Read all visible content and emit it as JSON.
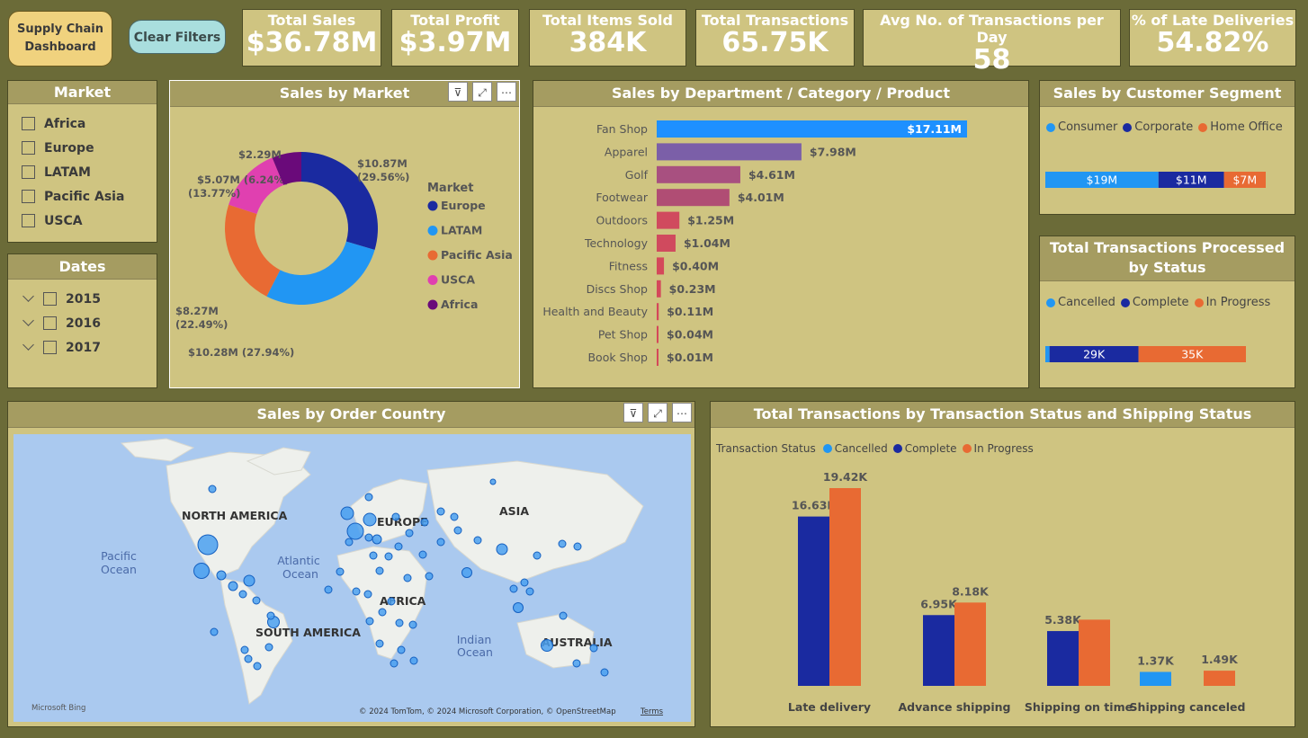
{
  "buttons": {
    "supply_chain": "Supply Chain Dashboard",
    "clear_filters": "Clear Filters"
  },
  "kpis": [
    {
      "label": "Total Sales",
      "value": "$36.78M"
    },
    {
      "label": "Total Profit",
      "value": "$3.97M"
    },
    {
      "label": "Total Items Sold",
      "value": "384K"
    },
    {
      "label": "Total Transactions",
      "value": "65.75K"
    },
    {
      "label": "Avg No. of Transactions per Day",
      "value": "58"
    },
    {
      "label": "% of Late Deliveries",
      "value": "54.82%"
    }
  ],
  "market_slicer": {
    "title": "Market",
    "items": [
      "Africa",
      "Europe",
      "LATAM",
      "Pacific Asia",
      "USCA"
    ]
  },
  "dates_slicer": {
    "title": "Dates",
    "items": [
      "2015",
      "2016",
      "2017"
    ]
  },
  "sales_by_market": {
    "title": "Sales by Market",
    "legend_title": "Market",
    "chart_data": {
      "type": "pie",
      "labels": [
        "Europe",
        "LATAM",
        "Pacific Asia",
        "USCA",
        "Africa"
      ],
      "values": [
        10.87,
        10.28,
        8.27,
        5.07,
        2.29
      ],
      "data_labels": [
        "$10.87M (29.56%)",
        "$10.28M (27.94%)",
        "$8.27M (22.49%)",
        "$5.07M (13.77%)",
        "$2.29M (6.24%)"
      ],
      "colors": [
        "#1a2aa0",
        "#2196f3",
        "#e86a33",
        "#e040b0",
        "#6a0a7a"
      ]
    }
  },
  "sales_by_department": {
    "title": "Sales by Department / Category / Product",
    "chart_data": {
      "type": "bar",
      "categories": [
        "Fan Shop",
        "Apparel",
        "Golf",
        "Footwear",
        "Outdoors",
        "Technology",
        "Fitness",
        "Discs Shop",
        "Health and Beauty",
        "Pet Shop",
        "Book Shop"
      ],
      "values": [
        17.11,
        7.98,
        4.61,
        4.01,
        1.25,
        1.04,
        0.4,
        0.23,
        0.11,
        0.04,
        0.01
      ],
      "data_labels": [
        "$17.11M",
        "$7.98M",
        "$4.61M",
        "$4.01M",
        "$1.25M",
        "$1.04M",
        "$0.40M",
        "$0.23M",
        "$0.11M",
        "$0.04M",
        "$0.01M"
      ],
      "colors": [
        "#1e90ff",
        "#7b5fa8",
        "#a85080",
        "#b04d74",
        "#d04a5e",
        "#d04a5e",
        "#d4485a",
        "#d4485a",
        "#d4485a",
        "#d4485a",
        "#d4485a"
      ]
    }
  },
  "sales_by_segment": {
    "title": "Sales by Customer Segment",
    "chart_data": {
      "type": "bar",
      "series": [
        {
          "name": "Consumer",
          "value": 19,
          "label": "$19M",
          "color": "#2196f3"
        },
        {
          "name": "Corporate",
          "value": 11,
          "label": "$11M",
          "color": "#1a2aa0"
        },
        {
          "name": "Home Office",
          "value": 7,
          "label": "$7M",
          "color": "#e86a33"
        }
      ]
    }
  },
  "transactions_by_status": {
    "title_line1": "Total Transactions Processed",
    "title_line2": "by Status",
    "chart_data": {
      "type": "bar",
      "series": [
        {
          "name": "Cancelled",
          "value": 1.37,
          "label": "",
          "color": "#2196f3"
        },
        {
          "name": "Complete",
          "value": 29,
          "label": "29K",
          "color": "#1a2aa0"
        },
        {
          "name": "In Progress",
          "value": 35,
          "label": "35K",
          "color": "#e86a33"
        }
      ]
    }
  },
  "sales_by_country": {
    "title": "Sales by Order Country",
    "labels": [
      "NORTH AMERICA",
      "EUROPE",
      "ASIA",
      "AFRICA",
      "SOUTH AMERICA",
      "AUSTRALIA"
    ],
    "oceans": [
      "Pacific",
      "Ocean",
      "Atlantic",
      "Ocean",
      "Indian",
      "Ocean"
    ],
    "bing": "Microsoft Bing",
    "attribution": "© 2024 TomTom, © 2024 Microsoft Corporation, © OpenStreetMap",
    "terms": "Terms"
  },
  "shipping_chart": {
    "title": "Total Transactions by Transaction Status and Shipping Status",
    "legend_title": "Transaction Status",
    "legend": [
      {
        "name": "Cancelled",
        "color": "#2196f3"
      },
      {
        "name": "Complete",
        "color": "#1a2aa0"
      },
      {
        "name": "In Progress",
        "color": "#e86a33"
      }
    ],
    "chart_data": {
      "type": "bar",
      "categories": [
        "Late delivery",
        "Advance shipping",
        "Shipping on time",
        "Shipping canceled"
      ],
      "groups": [
        {
          "bars": [
            {
              "series": "Complete",
              "value": 16.63,
              "label": "16.63K"
            },
            {
              "series": "In Progress",
              "value": 19.42,
              "label": "19.42K"
            }
          ]
        },
        {
          "bars": [
            {
              "series": "Complete",
              "value": 6.95,
              "label": "6.95K"
            },
            {
              "series": "In Progress",
              "value": 8.18,
              "label": "8.18K"
            }
          ]
        },
        {
          "bars": [
            {
              "series": "Complete",
              "value": 5.38,
              "label": "5.38K"
            },
            {
              "series": "In Progress",
              "value": 6.5,
              "label": ""
            }
          ]
        },
        {
          "bars": [
            {
              "series": "Cancelled",
              "value": 1.37,
              "label": "1.37K"
            },
            {
              "series": "Cancelled",
              "value": 1.49,
              "label": "1.49K",
              "color_override": "#e86a33"
            }
          ]
        }
      ]
    }
  }
}
